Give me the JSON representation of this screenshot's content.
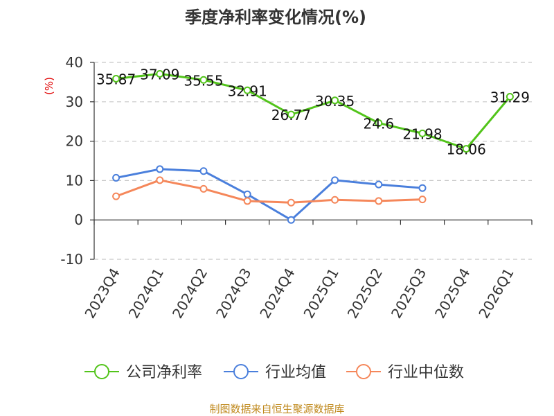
{
  "chart_data": {
    "type": "line",
    "title": "季度净利率变化情况(%)",
    "ylabel": "(%)",
    "categories": [
      "2023Q4",
      "2024Q1",
      "2024Q2",
      "2024Q3",
      "2024Q4",
      "2025Q1",
      "2025Q2",
      "2025Q3",
      "2025Q4",
      "2026Q1"
    ],
    "ylim": [
      -10,
      40
    ],
    "yticks": [
      -10,
      0,
      10,
      20,
      30,
      40
    ],
    "grid": "horizontal dashed",
    "legend_position": "bottom",
    "series": [
      {
        "name": "公司净利率",
        "color": "#52c41a",
        "labeled": true,
        "values": [
          35.87,
          37.09,
          35.55,
          32.91,
          26.77,
          30.35,
          24.6,
          21.98,
          18.06,
          31.29
        ]
      },
      {
        "name": "行业均值",
        "color": "#4a7fdc",
        "labeled": false,
        "values": [
          10.7,
          12.9,
          12.4,
          6.5,
          0.0,
          10.1,
          9.0,
          8.1,
          null,
          null
        ]
      },
      {
        "name": "行业中位数",
        "color": "#f5875a",
        "labeled": false,
        "values": [
          6.0,
          10.1,
          7.9,
          4.8,
          4.4,
          5.1,
          4.8,
          5.2,
          null,
          null
        ]
      }
    ]
  },
  "source": "制图数据来自恒生聚源数据库"
}
